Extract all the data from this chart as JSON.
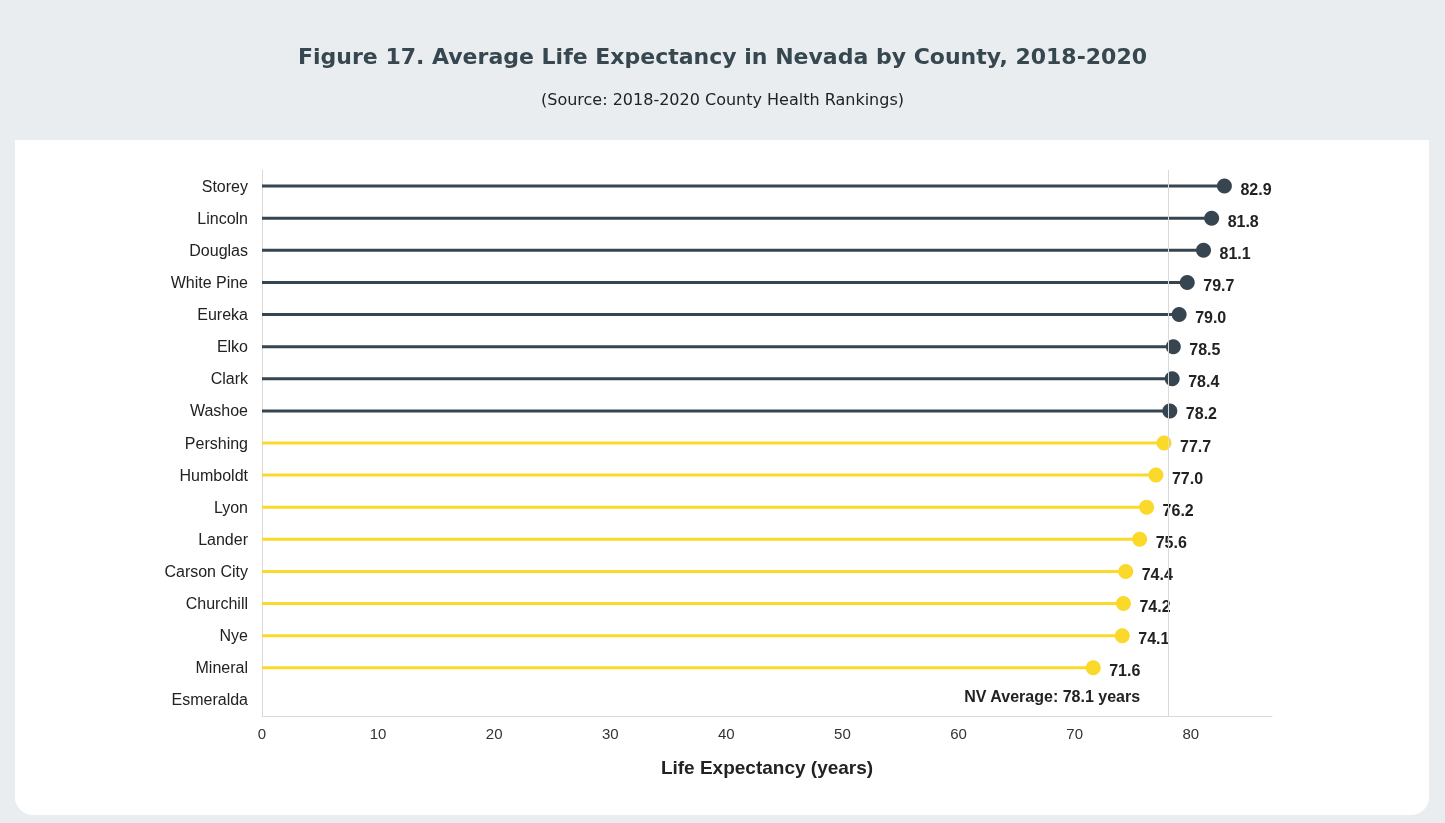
{
  "chart_data": {
    "type": "lollipop",
    "orientation": "horizontal",
    "title": "Figure 17. Average Life Expectancy in Nevada by County,  2018-2020",
    "subtitle": "(Source: 2018-2020 County Health Rankings)",
    "xlabel": "Life Expectancy (years)",
    "categories": [
      "Storey",
      "Lincoln",
      "Douglas",
      "White Pine",
      "Eureka",
      "Elko",
      "Clark",
      "Washoe",
      "Pershing",
      "Humboldt",
      "Lyon",
      "Lander",
      "Carson City",
      "Churchill",
      "Nye",
      "Mineral",
      "Esmeralda"
    ],
    "series": [
      {
        "values": [
          82.9,
          81.8,
          81.1,
          79.7,
          79.0,
          78.5,
          78.4,
          78.2,
          77.7,
          77.0,
          76.2,
          75.6,
          74.4,
          74.2,
          74.1,
          71.6,
          null
        ],
        "value_labels": [
          "82.9",
          "81.8",
          "81.1",
          "79.7",
          "79.0",
          "78.5",
          "78.4",
          "78.2",
          "77.7",
          "77.0",
          "76.2",
          "75.6",
          "74.4",
          "74.2",
          "74.1",
          "71.6",
          null
        ],
        "colors": [
          "#36454f",
          "#36454f",
          "#36454f",
          "#36454f",
          "#36454f",
          "#36454f",
          "#36454f",
          "#36454f",
          "#fbd92a",
          "#fbd92a",
          "#fbd92a",
          "#fbd92a",
          "#fbd92a",
          "#fbd92a",
          "#fbd92a",
          "#fbd92a",
          null
        ]
      }
    ],
    "xlim": [
      0,
      87
    ],
    "xticks": [
      0,
      10,
      20,
      30,
      40,
      50,
      60,
      70,
      80
    ],
    "ref_lines": [
      {
        "axis": "x",
        "value": 78.1,
        "label": "NV Average: 78.1 years",
        "color": "#d9d9d9"
      }
    ],
    "grid": false,
    "marker": "circle"
  }
}
